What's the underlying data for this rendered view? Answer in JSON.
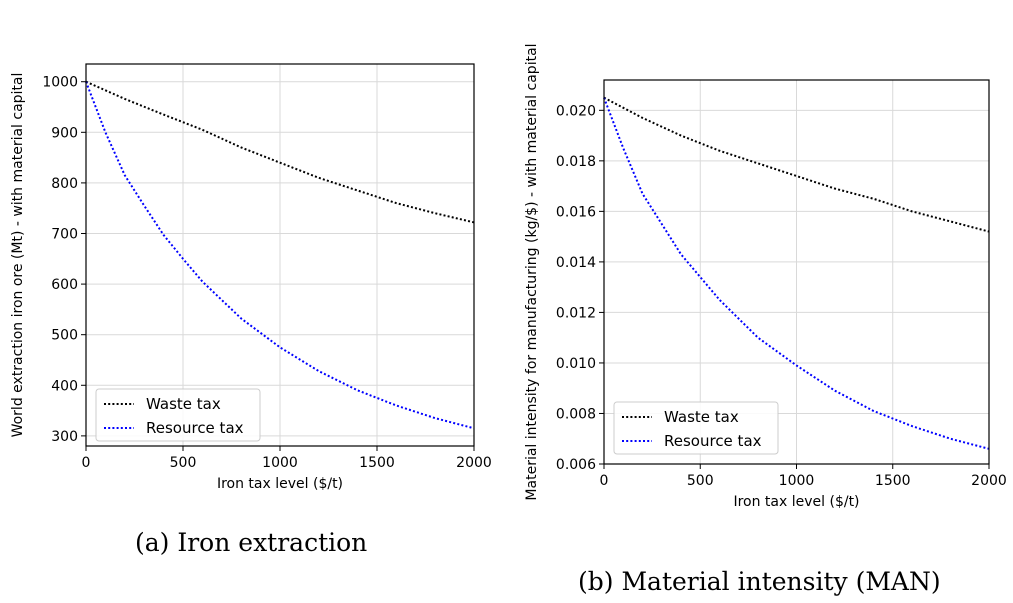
{
  "chart_data": [
    {
      "type": "line",
      "caption": "(a) Iron extraction",
      "xlabel": "Iron tax level ($/t)",
      "ylabel": "World extraction iron ore (Mt) - with material capital",
      "xlim": [
        0,
        2000
      ],
      "ylim": [
        280,
        1035
      ],
      "xticks": [
        0,
        500,
        1000,
        1500,
        2000
      ],
      "yticks": [
        300,
        400,
        500,
        600,
        700,
        800,
        900,
        1000
      ],
      "ytick_labels": [
        "300",
        "400",
        "500",
        "600",
        "700",
        "800",
        "900",
        "1000"
      ],
      "grid": true,
      "legend_position": "lower-left",
      "series": [
        {
          "name": "Waste tax",
          "color": "#000000",
          "style": "dotted",
          "x": [
            0,
            200,
            400,
            600,
            800,
            1000,
            1200,
            1400,
            1600,
            1800,
            2000
          ],
          "y": [
            1000,
            966,
            935,
            905,
            870,
            840,
            810,
            785,
            760,
            740,
            722
          ]
        },
        {
          "name": "Resource tax",
          "color": "#0000ff",
          "style": "dotted",
          "x": [
            0,
            100,
            200,
            300,
            400,
            500,
            600,
            800,
            1000,
            1200,
            1400,
            1600,
            1800,
            2000
          ],
          "y": [
            1000,
            900,
            815,
            755,
            697,
            650,
            605,
            532,
            475,
            428,
            390,
            360,
            335,
            315
          ]
        }
      ]
    },
    {
      "type": "line",
      "caption": "(b) Material intensity (MAN)",
      "xlabel": "Iron tax level ($/t)",
      "ylabel": "Material intensity for manufacturing (kg/$) - with material capital",
      "xlim": [
        0,
        2000
      ],
      "ylim": [
        0.006,
        0.0212
      ],
      "xticks": [
        0,
        500,
        1000,
        1500,
        2000
      ],
      "yticks": [
        0.006,
        0.008,
        0.01,
        0.012,
        0.014,
        0.016,
        0.018,
        0.02
      ],
      "ytick_labels": [
        "0.006",
        "0.008",
        "0.010",
        "0.012",
        "0.014",
        "0.016",
        "0.018",
        "0.020"
      ],
      "grid": true,
      "legend_position": "lower-left",
      "series": [
        {
          "name": "Waste tax",
          "color": "#000000",
          "style": "dotted",
          "x": [
            0,
            200,
            400,
            600,
            800,
            1000,
            1200,
            1400,
            1600,
            1800,
            2000
          ],
          "y": [
            0.0205,
            0.0197,
            0.019,
            0.0184,
            0.0179,
            0.0174,
            0.0169,
            0.0165,
            0.016,
            0.0156,
            0.0152
          ]
        },
        {
          "name": "Resource tax",
          "color": "#0000ff",
          "style": "dotted",
          "x": [
            0,
            100,
            200,
            300,
            400,
            500,
            600,
            800,
            1000,
            1200,
            1400,
            1600,
            1800,
            2000
          ],
          "y": [
            0.0205,
            0.0185,
            0.0167,
            0.0155,
            0.0143,
            0.0134,
            0.0125,
            0.011,
            0.0099,
            0.0089,
            0.0081,
            0.0075,
            0.007,
            0.0066
          ]
        }
      ]
    }
  ]
}
